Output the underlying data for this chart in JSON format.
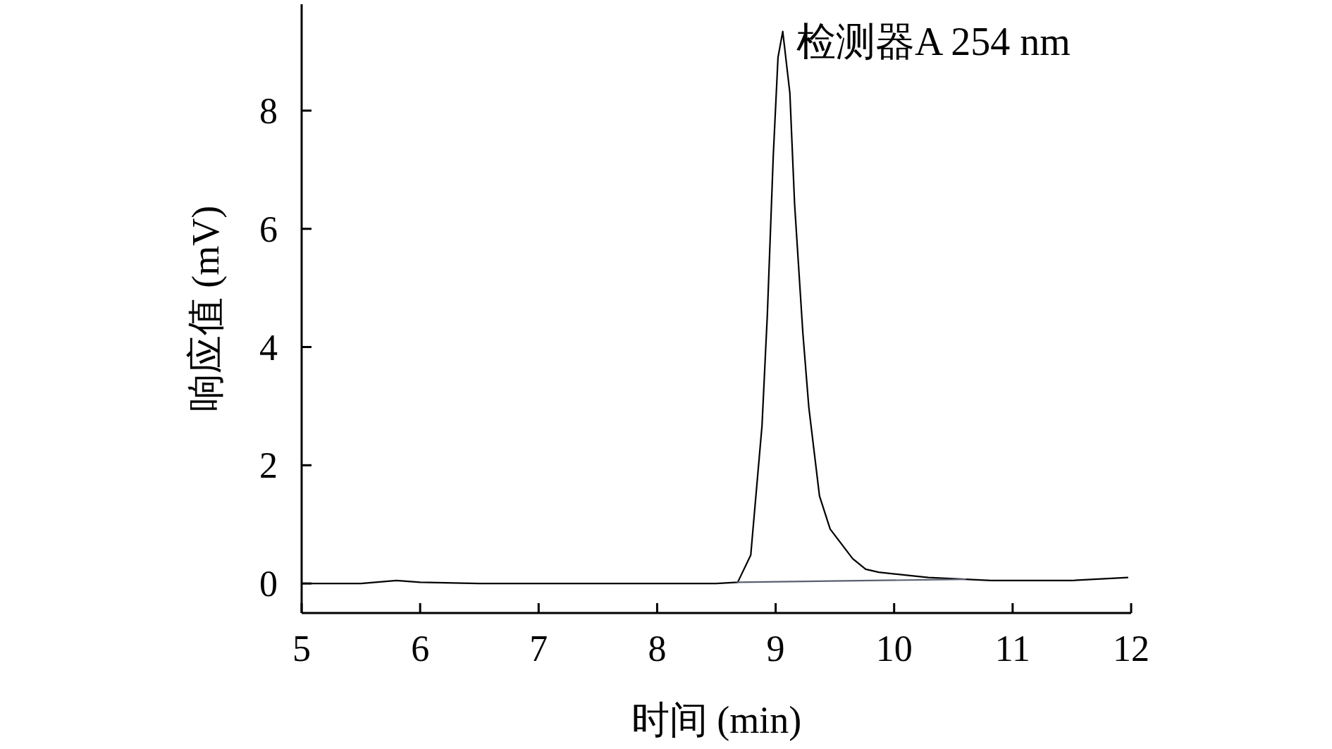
{
  "chart_data": {
    "type": "line",
    "xlabel": "时间 (min)",
    "ylabel": "响应值 (mV)",
    "xlim": [
      5,
      12
    ],
    "ylim": [
      -0.5,
      9.8
    ],
    "xticks": [
      5,
      6,
      7,
      8,
      9,
      10,
      11,
      12
    ],
    "yticks": [
      0,
      2,
      4,
      6,
      8
    ],
    "annotations": [
      "检测器A 254 nm"
    ],
    "series": [
      {
        "color": "#000000",
        "x": [
          5.0,
          5.5,
          5.8,
          6.0,
          6.5,
          7.0,
          7.5,
          8.0,
          8.5,
          8.68,
          8.79,
          8.885,
          8.93,
          8.98,
          9.02,
          9.06,
          9.12,
          9.16,
          9.23,
          9.28,
          9.37,
          9.46,
          9.65,
          9.76,
          9.87,
          10.29,
          10.82,
          11.5,
          11.97
        ],
        "values": [
          0.0,
          0.0,
          0.05,
          0.02,
          0.0,
          0.0,
          0.0,
          0.0,
          0.0,
          0.02,
          0.48,
          2.67,
          4.55,
          7.24,
          8.9,
          9.34,
          8.3,
          6.42,
          4.23,
          2.98,
          1.48,
          0.92,
          0.42,
          0.24,
          0.19,
          0.1,
          0.05,
          0.05,
          0.1
        ]
      },
      {
        "color": "#5a6070",
        "x": [
          8.68,
          10.6
        ],
        "values": [
          0.02,
          0.07
        ]
      }
    ]
  }
}
